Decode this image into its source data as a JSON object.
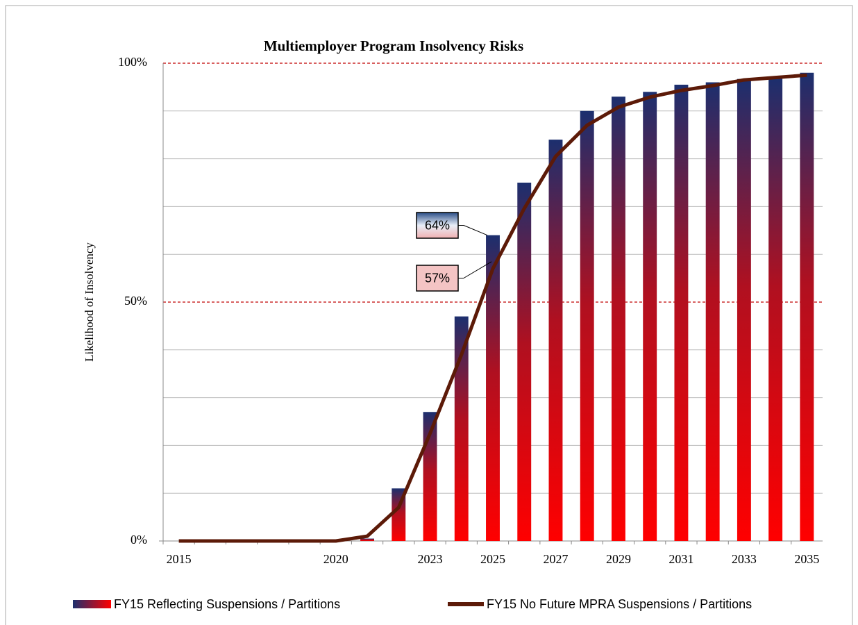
{
  "chart_data": {
    "type": "bar_line",
    "title": "Multiemployer Program Insolvency Risks",
    "y_label": "Likelihood of Insolvency",
    "categories": [
      "2015",
      null,
      null,
      null,
      null,
      "2020",
      null,
      null,
      "2023",
      null,
      "2025",
      null,
      "2027",
      null,
      "2029",
      null,
      "2031",
      null,
      "2033",
      null,
      "2035"
    ],
    "series": [
      {
        "name": "FY15 Reflecting Suspensions / Partitions",
        "kind": "bar",
        "color": "#ff0000",
        "values": [
          0,
          0,
          0,
          0,
          0,
          0,
          0.5,
          11,
          27,
          47,
          64,
          75,
          84,
          90,
          93,
          94,
          95.5,
          96,
          96.7,
          96.8,
          98
        ],
        "value_labels": [
          null,
          null,
          null,
          null,
          null,
          null,
          null,
          null,
          null,
          null,
          "64%",
          null,
          null,
          null,
          null,
          null,
          null,
          null,
          null,
          null,
          null
        ]
      },
      {
        "name": "FY15 No Future MPRA Suspensions / Partitions",
        "kind": "line",
        "color": "#5c1a08",
        "values": [
          0,
          0,
          0,
          0,
          0,
          0,
          1,
          7,
          22.5,
          39,
          57,
          69.6,
          80.5,
          87,
          90.8,
          92.9,
          94.3,
          95.3,
          96.5,
          97,
          97.5
        ],
        "value_labels": [
          null,
          null,
          null,
          null,
          null,
          null,
          null,
          null,
          null,
          null,
          "57%",
          null,
          null,
          null,
          null,
          null,
          null,
          null,
          null,
          null,
          null
        ]
      }
    ],
    "ylim": [
      0,
      100
    ],
    "yticks": [
      {
        "value": 0,
        "label": "0%"
      },
      {
        "value": 50,
        "label": "50%"
      },
      {
        "value": 100,
        "label": "100%"
      }
    ],
    "minor_yticks": [
      10,
      20,
      30,
      40,
      60,
      70,
      80,
      90
    ],
    "grid": true,
    "legend": "bottom"
  }
}
